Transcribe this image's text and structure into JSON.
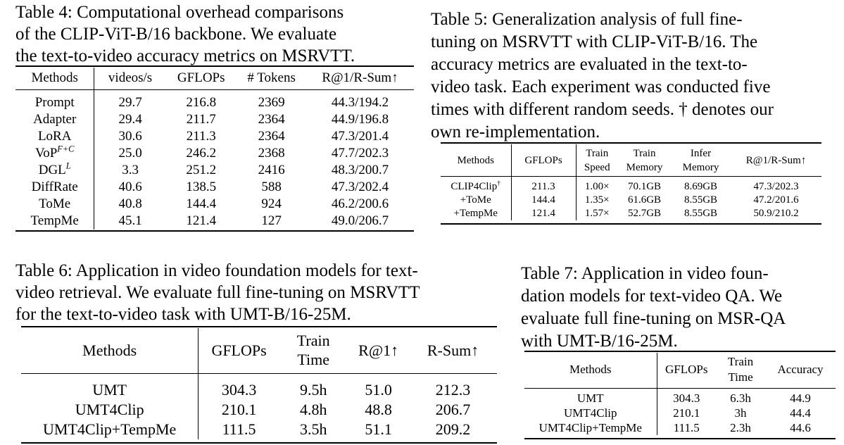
{
  "table4": {
    "caption_lines": [
      "Table 4: Computational overhead comparisons",
      "of the CLIP-ViT-B/16 backbone. We evaluate",
      "the text-to-video accuracy metrics on MSRVTT."
    ],
    "headers": [
      "Methods",
      "videos/s",
      "GFLOPs",
      "# Tokens",
      "R@1/R-Sum↑"
    ],
    "rows": [
      {
        "method": "Prompt",
        "sup": "",
        "vals": [
          "29.7",
          "216.8",
          "2369",
          "44.3/194.2"
        ]
      },
      {
        "method": "Adapter",
        "sup": "",
        "vals": [
          "29.4",
          "211.7",
          "2364",
          "44.9/196.8"
        ]
      },
      {
        "method": "LoRA",
        "sup": "",
        "vals": [
          "30.6",
          "211.3",
          "2364",
          "47.3/201.4"
        ]
      },
      {
        "method": "VoP",
        "sup": "F+C",
        "vals": [
          "25.0",
          "246.2",
          "2368",
          "47.7/202.3"
        ]
      },
      {
        "method": "DGL",
        "sup": "L",
        "vals": [
          "3.3",
          "251.2",
          "2416",
          "48.3/200.7"
        ]
      },
      {
        "method": "DiffRate",
        "sup": "",
        "vals": [
          "40.6",
          "138.5",
          "588",
          "47.3/202.4"
        ]
      },
      {
        "method": "ToMe",
        "sup": "",
        "vals": [
          "40.8",
          "144.4",
          "924",
          "46.2/200.6"
        ]
      },
      {
        "method": "TempMe",
        "sup": "",
        "vals": [
          "45.1",
          "121.4",
          "127",
          "49.0/206.7"
        ],
        "bold": true
      }
    ]
  },
  "table5": {
    "caption_lines": [
      "Table 5: Generalization analysis of full fine-",
      "tuning on MSRVTT with CLIP-ViT-B/16. The",
      "accuracy metrics are evaluated in the text-to-",
      "video task. Each experiment was conducted five",
      "times with different random seeds. † denotes our",
      "own re-implementation."
    ],
    "headers": [
      [
        "Methods"
      ],
      [
        "GFLOPs"
      ],
      [
        "Train",
        "Speed"
      ],
      [
        "Train",
        "Memory"
      ],
      [
        "Infer",
        "Memory"
      ],
      [
        "R@1/R-Sum↑"
      ]
    ],
    "rows": [
      {
        "method": "CLIP4Clip",
        "sup": "†",
        "vals": [
          "211.3",
          "1.00×",
          "70.1GB",
          "8.69GB",
          "47.3/202.3"
        ],
        "bold": [
          false,
          false,
          false,
          false,
          false
        ]
      },
      {
        "method": "+ToMe",
        "sup": "",
        "vals": [
          "144.4",
          "1.35×",
          "61.6GB",
          "8.55GB",
          "47.2/201.6"
        ],
        "bold": [
          false,
          false,
          false,
          true,
          false
        ]
      },
      {
        "method": "+TempMe",
        "sup": "",
        "vals": [
          "121.4",
          "1.57×",
          "52.7GB",
          "8.55GB",
          "50.9/210.2"
        ],
        "bold": [
          true,
          true,
          true,
          true,
          true
        ]
      }
    ]
  },
  "table6": {
    "caption_lines": [
      "Table 6: Application in video foundation models for text-",
      "video retrieval. We evaluate full fine-tuning on MSRVTT",
      "for the text-to-video task with UMT-B/16-25M."
    ],
    "headers": [
      [
        "Methods"
      ],
      [
        "GFLOPs"
      ],
      [
        "Train",
        "Time"
      ],
      [
        "R@1↑"
      ],
      [
        "R-Sum↑"
      ]
    ],
    "rows": [
      {
        "method": "UMT",
        "vals": [
          "304.3",
          "9.5h",
          "51.0",
          "212.3"
        ],
        "bold": [
          false,
          false,
          false,
          true
        ]
      },
      {
        "method": "UMT4Clip",
        "vals": [
          "210.1",
          "4.8h",
          "48.8",
          "206.7"
        ],
        "bold": [
          false,
          false,
          false,
          false
        ]
      },
      {
        "method": "UMT4Clip+TempMe",
        "vals": [
          "111.5",
          "3.5h",
          "51.1",
          "209.2"
        ],
        "bold": [
          true,
          true,
          true,
          false
        ]
      }
    ]
  },
  "table7": {
    "caption_lines": [
      "Table 7: Application in video foun-",
      "dation models for text-video QA. We",
      "evaluate full fine-tuning on MSR-QA",
      "with UMT-B/16-25M."
    ],
    "headers": [
      [
        "Methods"
      ],
      [
        "GFLOPs"
      ],
      [
        "Train",
        "Time"
      ],
      [
        "Accuracy"
      ]
    ],
    "rows": [
      {
        "method": "UMT",
        "vals": [
          "304.3",
          "6.3h",
          "44.9"
        ],
        "bold": [
          false,
          false,
          true
        ]
      },
      {
        "method": "UMT4Clip",
        "vals": [
          "210.1",
          "3h",
          "44.4"
        ],
        "bold": [
          false,
          false,
          false
        ]
      },
      {
        "method": "UMT4Clip+TempMe",
        "vals": [
          "111.5",
          "2.3h",
          "44.6"
        ],
        "bold": [
          true,
          true,
          false
        ]
      }
    ]
  }
}
